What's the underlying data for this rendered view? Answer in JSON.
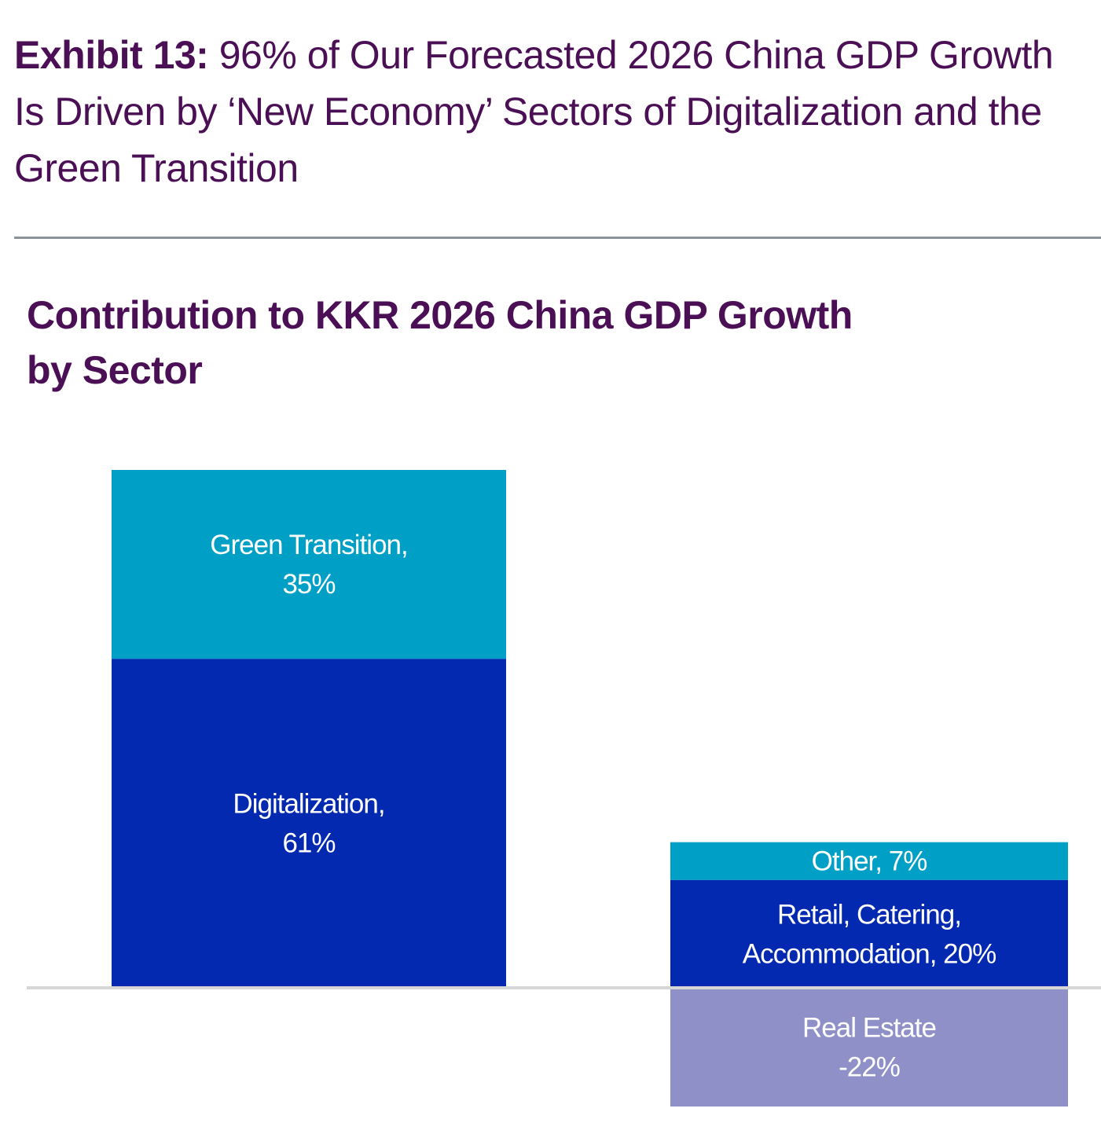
{
  "exhibit": {
    "label": "Exhibit 13:",
    "headline": "96% of Our Forecasted 2026 China GDP Growth Is Driven by ‘New Economy’ Sectors of Digitalization and the Green Transition"
  },
  "colors": {
    "title": "#4b0f55",
    "divider": "#8c9398",
    "axis": "#d6d6d6",
    "teal": "#00a0c6",
    "royal_blue": "#0329b0",
    "lavender": "#8f90c8"
  },
  "chart_data": {
    "type": "bar",
    "stacked": true,
    "title": "Contribution to KKR 2026 China GDP Growth by Sector",
    "xlabel": "",
    "ylabel": "",
    "units": "%",
    "ylim": [
      -22,
      96
    ],
    "grid": false,
    "legend": "none",
    "series": [
      {
        "column": 0,
        "value": 61,
        "color": "#0329b0",
        "label_lines": [
          "Digitalization,",
          "61%"
        ]
      },
      {
        "column": 0,
        "value": 35,
        "color": "#00a0c6",
        "label_lines": [
          "Green Transition,",
          "35%"
        ]
      },
      {
        "column": 1,
        "value": 20,
        "color": "#0329b0",
        "label_lines": [
          "Retail, Catering,",
          "Accommodation, 20%"
        ]
      },
      {
        "column": 1,
        "value": 7,
        "color": "#00a0c6",
        "label_lines": [
          "Other, 7%"
        ]
      },
      {
        "column": 1,
        "value": -22,
        "color": "#8f90c8",
        "label_lines": [
          "Real Estate",
          "-22%"
        ]
      }
    ]
  }
}
